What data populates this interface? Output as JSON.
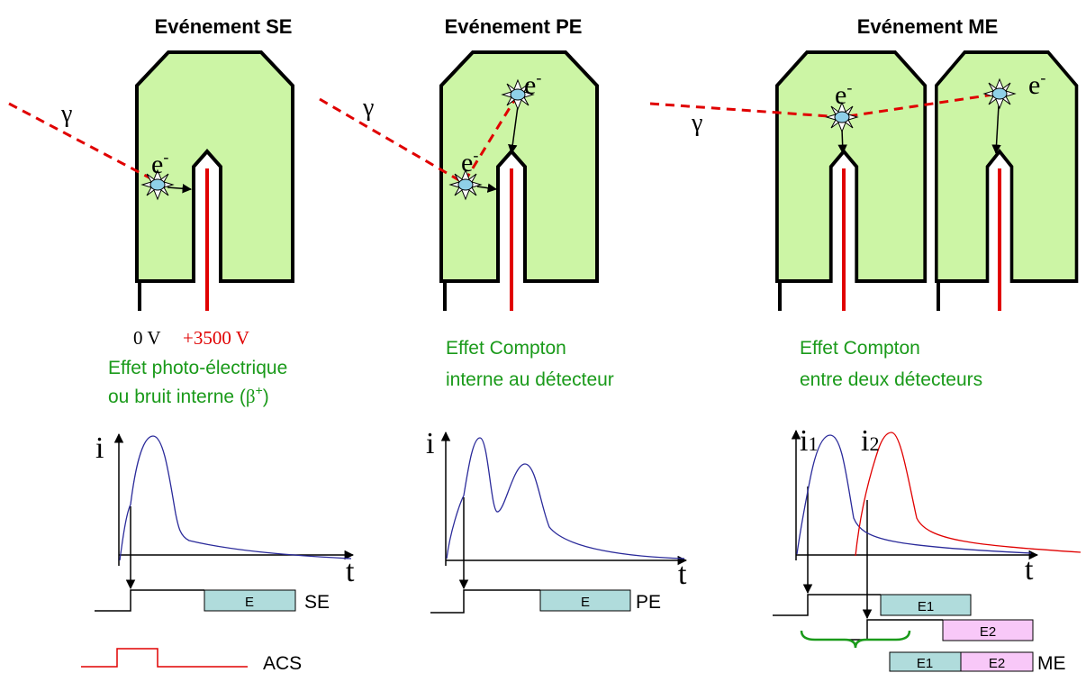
{
  "titles": [
    "Evénement SE",
    "Evénement PE",
    "Evénement ME"
  ],
  "gamma": "γ",
  "electron": {
    "base": "e",
    "sup": "-"
  },
  "voltages": {
    "ground": "0 V",
    "high": "+3500 V"
  },
  "captions": {
    "se": {
      "line1": "Effet photo-électrique",
      "line2": {
        "text": "ou bruit interne (",
        "symbol": "β",
        "sup": "+",
        "close": ")"
      }
    },
    "pe": {
      "line1": "Effet Compton",
      "line2": "interne au détecteur"
    },
    "me": {
      "line1": "Effet Compton",
      "line2": "entre deux détecteurs"
    }
  },
  "axes": {
    "current": "i",
    "time": "t",
    "subscripts": [
      "1",
      "2"
    ]
  },
  "gates": {
    "se": {
      "window": "E",
      "label": "SE"
    },
    "pe": {
      "window": "E",
      "label": "PE"
    },
    "me": {
      "window1": "E1",
      "window2": "E2",
      "sum": [
        "E1",
        "E2"
      ],
      "label": "ME"
    }
  },
  "acs": "ACS"
}
